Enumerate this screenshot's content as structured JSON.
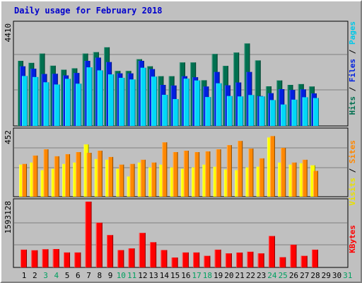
{
  "title": "Daily usage for February 2018",
  "colors": {
    "hits": "#007050",
    "files": "#0020e0",
    "pages": "#00d8f8",
    "visits": "#ffff00",
    "sites": "#ff8800",
    "kbytes": "#ff0000",
    "weekend_day": "#00a060",
    "weekday": "#000000",
    "background": "#c0c0c0"
  },
  "right_labels": {
    "top": [
      {
        "text": "Pages",
        "color": "#00c8e8"
      },
      {
        "text": " / ",
        "color": "#000000"
      },
      {
        "text": "Files",
        "color": "#0020e0"
      },
      {
        "text": " / ",
        "color": "#000000"
      },
      {
        "text": "Hits",
        "color": "#007050"
      }
    ],
    "middle": [
      {
        "text": "Sites",
        "color": "#ff8800"
      },
      {
        "text": " / ",
        "color": "#000000"
      },
      {
        "text": "Visits",
        "color": "#e8e000"
      }
    ],
    "bottom": [
      {
        "text": "KBytes",
        "color": "#ff0000"
      }
    ]
  },
  "chart_data": [
    {
      "type": "bar",
      "panel": "hits-files-pages",
      "ylabel_max": "4410",
      "ylim": [
        0,
        4410
      ],
      "categories": [
        "1",
        "2",
        "3",
        "4",
        "5",
        "6",
        "7",
        "8",
        "9",
        "10",
        "11",
        "12",
        "13",
        "14",
        "15",
        "16",
        "17",
        "18",
        "19",
        "20",
        "21",
        "22",
        "23",
        "24",
        "25",
        "26",
        "27",
        "28",
        "29",
        "30",
        "31"
      ],
      "weekend_days": [
        "3",
        "4",
        "10",
        "11",
        "17",
        "18",
        "24",
        "25",
        "31"
      ],
      "series": [
        {
          "name": "Hits",
          "values": [
            3220,
            3120,
            3580,
            2980,
            2780,
            2850,
            3580,
            3650,
            3890,
            2720,
            2720,
            3300,
            2950,
            2460,
            2460,
            3140,
            3140,
            2260,
            3560,
            2970,
            3630,
            4080,
            3240,
            1960,
            2250,
            2030,
            2070,
            1950,
            0,
            0,
            0
          ]
        },
        {
          "name": "Files",
          "values": [
            2950,
            2830,
            2570,
            2580,
            2500,
            2620,
            3220,
            3380,
            3160,
            2600,
            2600,
            3220,
            2810,
            2030,
            2000,
            2460,
            2410,
            1950,
            2670,
            2010,
            2150,
            2670,
            1480,
            1620,
            1820,
            1780,
            1810,
            1610,
            0,
            0,
            0
          ]
        },
        {
          "name": "Pages",
          "values": [
            2470,
            2420,
            2160,
            2050,
            2330,
            2090,
            2900,
            2750,
            2550,
            2380,
            2300,
            2880,
            2440,
            1540,
            1330,
            2340,
            2250,
            1430,
            2110,
            1480,
            1460,
            1530,
            1460,
            1280,
            1060,
            1300,
            1420,
            1380,
            0,
            0,
            0
          ]
        }
      ]
    },
    {
      "type": "bar",
      "panel": "visits-sites",
      "ylabel_max": "452",
      "ylim": [
        0,
        452
      ],
      "categories": [
        "1",
        "2",
        "3",
        "4",
        "5",
        "6",
        "7",
        "8",
        "9",
        "10",
        "11",
        "12",
        "13",
        "14",
        "15",
        "16",
        "17",
        "18",
        "19",
        "20",
        "21",
        "22",
        "23",
        "24",
        "25",
        "26",
        "27",
        "28",
        "29",
        "30",
        "31"
      ],
      "series": [
        {
          "name": "Visits",
          "values": [
            230,
            245,
            190,
            200,
            235,
            245,
            375,
            270,
            265,
            200,
            145,
            245,
            210,
            230,
            210,
            200,
            210,
            230,
            215,
            195,
            190,
            210,
            215,
            425,
            245,
            230,
            240,
            225,
            0,
            0,
            0
          ]
        },
        {
          "name": "Sites",
          "values": [
            235,
            295,
            340,
            290,
            305,
            320,
            315,
            330,
            285,
            230,
            235,
            265,
            245,
            390,
            320,
            330,
            320,
            325,
            340,
            370,
            400,
            345,
            275,
            435,
            350,
            245,
            265,
            185,
            0,
            0,
            0
          ]
        }
      ]
    },
    {
      "type": "bar",
      "panel": "kbytes",
      "ylabel_max": "1593128",
      "ylim": [
        0,
        1593128
      ],
      "categories": [
        "1",
        "2",
        "3",
        "4",
        "5",
        "6",
        "7",
        "8",
        "9",
        "10",
        "11",
        "12",
        "13",
        "14",
        "15",
        "16",
        "17",
        "18",
        "19",
        "20",
        "21",
        "22",
        "23",
        "24",
        "25",
        "26",
        "27",
        "28",
        "29",
        "30",
        "31"
      ],
      "series": [
        {
          "name": "KBytes",
          "values": [
            430000,
            415000,
            440000,
            445000,
            362000,
            362000,
            1593128,
            1083000,
            783000,
            419000,
            460000,
            835000,
            610000,
            420000,
            240000,
            362000,
            362000,
            280000,
            430000,
            340000,
            360000,
            380000,
            340000,
            760000,
            247000,
            550000,
            280000,
            430000,
            0,
            0,
            0
          ]
        }
      ]
    }
  ]
}
